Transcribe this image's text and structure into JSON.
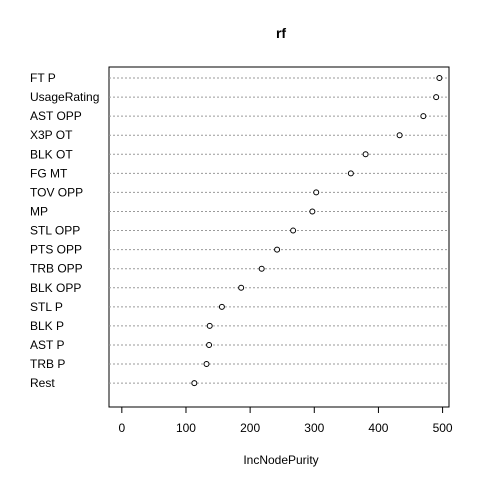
{
  "chart_data": {
    "type": "scatter",
    "title": "rf",
    "xlabel": "IncNodePurity",
    "ylabel": "",
    "xlim": [
      -20,
      510
    ],
    "x_ticks": [
      0,
      100,
      200,
      300,
      400,
      500
    ],
    "x_tick_labels": [
      "0",
      "100",
      "200",
      "300",
      "400",
      "500"
    ],
    "grid": "dotted horizontal guide lines",
    "categories": [
      "FT P",
      "UsageRating",
      "AST OPP",
      "X3P OT",
      "BLK OT",
      "FG MT",
      "TOV OPP",
      "MP",
      "STL OPP",
      "PTS OPP",
      "TRB OPP",
      "BLK OPP",
      "STL P",
      "BLK P",
      "AST P",
      "TRB P",
      "Rest"
    ],
    "values": [
      495,
      490,
      470,
      433,
      380,
      357,
      303,
      297,
      267,
      242,
      218,
      186,
      156,
      137,
      136,
      132,
      113
    ]
  }
}
